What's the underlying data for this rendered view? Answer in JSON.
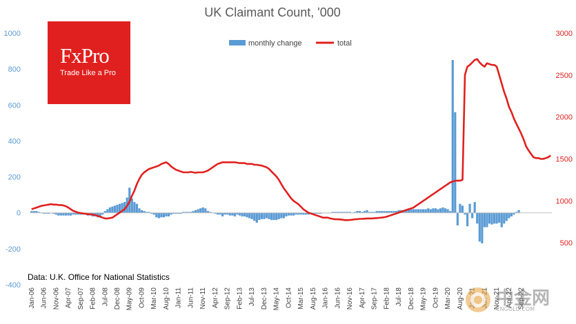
{
  "brand": {
    "name": "FxPro",
    "tagline": "Trade Like a Pro",
    "color": "#e0201e"
  },
  "watermark": {
    "name": "中金网",
    "url": "CNGOLD.COM"
  },
  "chart_data": {
    "type": "bar+line",
    "title": "UK Claimant Count, '000",
    "source_note": "Data: U.K. Office for National Statistics",
    "legend_placement": "top-center",
    "grid": false,
    "colors": {
      "bars": "#5b9bd5",
      "line": "#e0201e"
    },
    "y_left": {
      "min": -400,
      "max": 1000,
      "ticks": [
        -400,
        -200,
        0,
        200,
        400,
        600,
        800,
        1000
      ]
    },
    "y_right": {
      "min": 0,
      "max": 3000,
      "ticks": [
        500,
        1000,
        1500,
        2000,
        2500,
        3000
      ]
    },
    "x_tick_labels": [
      "Jan-06",
      "Jun-06",
      "Nov-06",
      "Apr-07",
      "Sep-07",
      "Feb-08",
      "Jul-08",
      "Dec-08",
      "May-09",
      "Oct-09",
      "Mar-10",
      "Aug-10",
      "Jan-11",
      "Jun-11",
      "Nov-11",
      "Apr-12",
      "Sep-12",
      "Feb-13",
      "Jul-13",
      "Dec-13",
      "May-14",
      "Oct-14",
      "Mar-15",
      "Aug-15",
      "Jan-16",
      "Jun-16",
      "Nov-16",
      "Apr-17",
      "Sep-17",
      "Feb-18",
      "Jul-18",
      "Dec-18",
      "May-19",
      "Oct-19",
      "Mar-20",
      "Aug-20",
      "Jan-21",
      "Jun-21",
      "Nov-21",
      "Apr-22",
      "Sep-22"
    ],
    "series": [
      {
        "name": "monthly change",
        "kind": "bar",
        "axis": "left",
        "start": "Jan-06",
        "values": [
          10,
          10,
          10,
          5,
          0,
          -5,
          -5,
          -5,
          0,
          -5,
          -10,
          -15,
          -15,
          -15,
          -15,
          -15,
          -15,
          -10,
          -10,
          -10,
          -10,
          -10,
          -10,
          -15,
          -15,
          -20,
          -20,
          -25,
          -20,
          -10,
          10,
          20,
          30,
          35,
          40,
          45,
          50,
          55,
          60,
          85,
          140,
          80,
          60,
          50,
          25,
          15,
          10,
          5,
          5,
          -5,
          -10,
          -25,
          -30,
          -25,
          -25,
          -20,
          -20,
          -10,
          -5,
          -5,
          -5,
          -5,
          5,
          5,
          5,
          5,
          10,
          15,
          20,
          25,
          30,
          25,
          10,
          5,
          0,
          -5,
          -10,
          -10,
          -20,
          -10,
          -10,
          -15,
          -15,
          -20,
          -10,
          -15,
          -20,
          -20,
          -25,
          -30,
          -35,
          -45,
          -55,
          -40,
          -35,
          -35,
          -30,
          -35,
          -40,
          -40,
          -40,
          -35,
          -30,
          -30,
          -20,
          -15,
          -15,
          -15,
          -10,
          -10,
          -10,
          -10,
          -10,
          -10,
          -5,
          -5,
          -5,
          -5,
          -5,
          0,
          0,
          0,
          0,
          5,
          5,
          5,
          5,
          5,
          5,
          5,
          5,
          0,
          5,
          10,
          10,
          5,
          10,
          15,
          5,
          5,
          5,
          10,
          10,
          10,
          10,
          10,
          10,
          10,
          10,
          10,
          15,
          15,
          15,
          20,
          20,
          20,
          20,
          20,
          20,
          20,
          20,
          20,
          25,
          20,
          25,
          25,
          20,
          25,
          30,
          25,
          20,
          10,
          850,
          560,
          -70,
          50,
          40,
          -10,
          -75,
          50,
          -30,
          60,
          -60,
          -160,
          -170,
          -80,
          -80,
          -60,
          -65,
          -60,
          -60,
          -55,
          -80,
          -60,
          -45,
          -30,
          -20,
          -10,
          5,
          15
        ],
        "note": "monthly change series in '000; outliers roughly Apr-20 850, May-20 560"
      },
      {
        "name": "total",
        "kind": "line",
        "axis": "right",
        "start": "Jan-06",
        "values": [
          900,
          910,
          920,
          930,
          940,
          945,
          950,
          955,
          960,
          955,
          955,
          950,
          950,
          945,
          935,
          920,
          900,
          880,
          870,
          860,
          855,
          850,
          845,
          840,
          840,
          835,
          830,
          820,
          810,
          800,
          790,
          790,
          795,
          800,
          820,
          840,
          860,
          880,
          900,
          940,
          990,
          1060,
          1120,
          1200,
          1260,
          1310,
          1340,
          1360,
          1380,
          1390,
          1400,
          1410,
          1420,
          1440,
          1450,
          1460,
          1440,
          1410,
          1390,
          1370,
          1360,
          1350,
          1340,
          1340,
          1340,
          1345,
          1340,
          1335,
          1340,
          1340,
          1340,
          1350,
          1360,
          1380,
          1400,
          1420,
          1440,
          1450,
          1460,
          1460,
          1460,
          1460,
          1460,
          1460,
          1455,
          1450,
          1450,
          1450,
          1440,
          1440,
          1440,
          1430,
          1430,
          1425,
          1420,
          1410,
          1400,
          1380,
          1350,
          1320,
          1290,
          1250,
          1200,
          1150,
          1110,
          1070,
          1030,
          1000,
          980,
          960,
          930,
          900,
          880,
          860,
          850,
          840,
          830,
          820,
          810,
          800,
          800,
          800,
          790,
          785,
          780,
          780,
          778,
          775,
          770,
          770,
          772,
          775,
          780,
          782,
          785,
          785,
          787,
          790,
          790,
          790,
          792,
          795,
          797,
          800,
          805,
          810,
          820,
          830,
          840,
          850,
          860,
          870,
          880,
          890,
          900,
          910,
          920,
          940,
          960,
          980,
          1000,
          1020,
          1040,
          1060,
          1080,
          1100,
          1120,
          1140,
          1160,
          1180,
          1200,
          1220,
          1230,
          1240,
          1240,
          1240,
          1250,
          2500,
          2600,
          2620,
          2650,
          2680,
          2690,
          2650,
          2620,
          2600,
          2640,
          2630,
          2620,
          2620,
          2600,
          2500,
          2400,
          2300,
          2220,
          2120,
          2060,
          1980,
          1920,
          1860,
          1800,
          1730,
          1650,
          1600,
          1560,
          1520,
          1510,
          1510,
          1500,
          1500,
          1510,
          1520,
          1540
        ]
      }
    ]
  }
}
